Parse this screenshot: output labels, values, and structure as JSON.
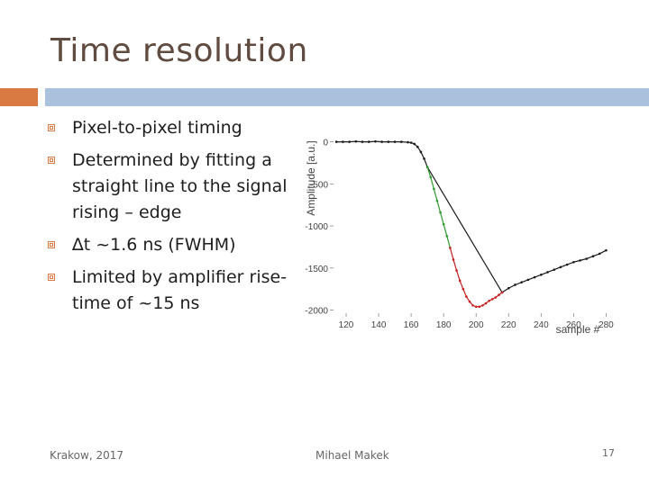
{
  "slide": {
    "title": "Time resolution",
    "bullets": [
      "Pixel-to-pixel timing",
      "Determined by fitting a straight line to the signal rising – edge",
      "∆t ~1.6 ns (FWHM)",
      "Limited by amplifier rise-time of ~15 ns"
    ],
    "footer_left": "Krakow, 2017",
    "footer_center": "Mihael Makek",
    "page_number": "17"
  },
  "chart_data": {
    "type": "scatter",
    "xlabel": "sample #",
    "ylabel": "Amplitude [a.u.]",
    "xlim": [
      110,
      282
    ],
    "ylim": [
      -2080,
      60
    ],
    "xticks": [
      "120",
      "140",
      "160",
      "180",
      "200",
      "220",
      "240",
      "260",
      "280"
    ],
    "yticks": [
      "0",
      "-500",
      "-1000",
      "-1500",
      "-2000"
    ],
    "grid": false,
    "series": [
      {
        "color": "#1a1a1a",
        "x": [
          114,
          118,
          122,
          126,
          130,
          134,
          138,
          142,
          146,
          150,
          154,
          158,
          160,
          162,
          164,
          166,
          168,
          170,
          216,
          220,
          224,
          228,
          232,
          236,
          240,
          244,
          248,
          252,
          256,
          260,
          264,
          268,
          272,
          276,
          280
        ],
        "y": [
          0,
          0,
          0,
          5,
          0,
          0,
          5,
          0,
          0,
          0,
          0,
          -5,
          -10,
          -25,
          -60,
          -120,
          -200,
          -300,
          -1790,
          -1740,
          -1700,
          -1670,
          -1640,
          -1610,
          -1580,
          -1550,
          -1520,
          -1490,
          -1460,
          -1430,
          -1410,
          -1390,
          -1360,
          -1330,
          -1290
        ]
      },
      {
        "color": "#2e9a2e",
        "x": [
          170,
          172,
          174,
          176,
          178,
          180,
          182,
          184
        ],
        "y": [
          -300,
          -420,
          -560,
          -700,
          -840,
          -980,
          -1120,
          -1260
        ]
      },
      {
        "color": "#c42020",
        "x": [
          184,
          186,
          188,
          190,
          192,
          194,
          196,
          198,
          200,
          202,
          204,
          206,
          208,
          210,
          212,
          214,
          216
        ],
        "y": [
          -1260,
          -1400,
          -1530,
          -1650,
          -1750,
          -1840,
          -1900,
          -1945,
          -1960,
          -1960,
          -1945,
          -1920,
          -1890,
          -1870,
          -1850,
          -1820,
          -1790
        ]
      }
    ]
  }
}
